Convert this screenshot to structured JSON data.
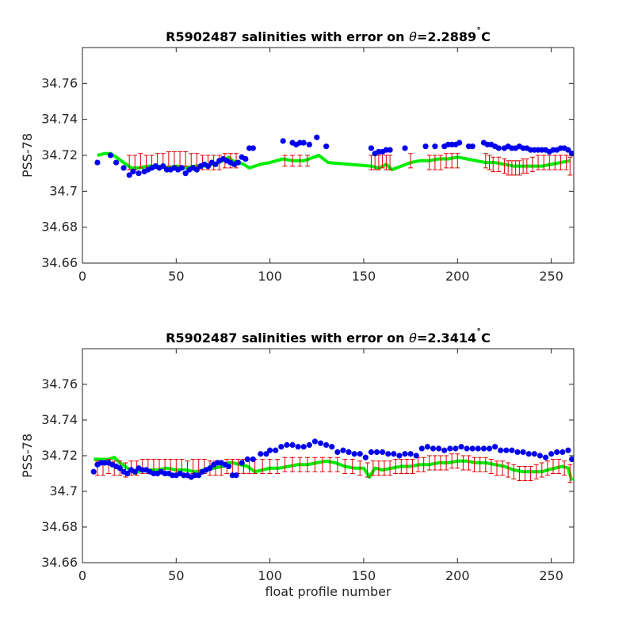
{
  "chart_data": [
    {
      "type": "scatter",
      "title": "R5902487 salinities with error on θ=2.2889˚C",
      "title_parts": {
        "prefix": "R5902487 salinities with error on ",
        "theta": "θ",
        "value": "=2.2889",
        "degree": "˚",
        "unit": "C"
      },
      "xlabel": "",
      "ylabel": "PSS-78",
      "xlim": [
        0,
        262
      ],
      "ylim": [
        34.66,
        34.78
      ],
      "xticks": [
        0,
        50,
        100,
        150,
        200,
        250
      ],
      "xtick_labels": [
        "0",
        "50",
        "100",
        "150",
        "200",
        "250"
      ],
      "yticks": [
        34.66,
        34.68,
        34.7,
        34.72,
        34.74,
        34.76
      ],
      "ytick_labels": [
        "34.66",
        "34.68",
        "34.7",
        "34.72",
        "34.74",
        "34.76"
      ],
      "colors": {
        "float": "#0000ee",
        "mapped": "#00ee00",
        "error": "#dd0000"
      },
      "float_points": {
        "x": [
          8,
          15,
          18,
          22,
          25,
          27,
          30,
          33,
          35,
          37,
          39,
          41,
          43,
          45,
          47,
          49,
          51,
          53,
          55,
          57,
          59,
          61,
          63,
          65,
          67,
          69,
          71,
          73,
          75,
          77,
          79,
          81,
          83,
          85,
          87,
          89,
          91,
          107,
          112,
          114,
          116,
          118,
          121,
          125,
          130,
          154,
          156,
          158,
          160,
          162,
          164,
          172,
          183,
          188,
          193,
          195,
          197,
          199,
          201,
          206,
          208,
          214,
          216,
          218,
          220,
          222,
          225,
          227,
          229,
          231,
          233,
          235,
          237,
          239,
          241,
          243,
          245,
          247,
          249,
          251,
          253,
          255,
          257,
          259,
          261
        ],
        "y": [
          34.716,
          34.72,
          34.716,
          34.713,
          34.709,
          34.711,
          34.71,
          34.711,
          34.712,
          34.713,
          34.714,
          34.713,
          34.714,
          34.712,
          34.712,
          34.713,
          34.712,
          34.713,
          34.71,
          34.712,
          34.713,
          34.712,
          34.714,
          34.715,
          34.714,
          34.716,
          34.715,
          34.717,
          34.718,
          34.717,
          34.716,
          34.715,
          34.716,
          34.719,
          34.718,
          34.724,
          34.724,
          34.728,
          34.727,
          34.726,
          34.727,
          34.727,
          34.726,
          34.73,
          34.725,
          34.724,
          34.721,
          34.722,
          34.722,
          34.723,
          34.723,
          34.724,
          34.725,
          34.725,
          34.725,
          34.726,
          34.726,
          34.726,
          34.727,
          34.725,
          34.725,
          34.727,
          34.726,
          34.726,
          34.725,
          34.724,
          34.724,
          34.725,
          34.724,
          34.724,
          34.725,
          34.724,
          34.724,
          34.723,
          34.723,
          34.723,
          34.723,
          34.723,
          34.722,
          34.723,
          34.723,
          34.724,
          34.724,
          34.723,
          34.721
        ]
      },
      "mapped_line": {
        "x": [
          8,
          12,
          15,
          18,
          22,
          26,
          30,
          35,
          40,
          45,
          50,
          55,
          60,
          65,
          70,
          75,
          78,
          80,
          83,
          86,
          89,
          95,
          100,
          107,
          112,
          118,
          121,
          126,
          131,
          154,
          158,
          162,
          165,
          170,
          175,
          180,
          185,
          190,
          195,
          200,
          205,
          210,
          215,
          220,
          225,
          230,
          235,
          240,
          245,
          250,
          255,
          260
        ],
        "y": [
          34.72,
          34.721,
          34.721,
          34.719,
          34.716,
          34.713,
          34.713,
          34.714,
          34.714,
          34.713,
          34.714,
          34.713,
          34.714,
          34.714,
          34.715,
          34.717,
          34.719,
          34.717,
          34.716,
          34.715,
          34.713,
          34.715,
          34.716,
          34.718,
          34.717,
          34.717,
          34.718,
          34.72,
          34.716,
          34.714,
          34.713,
          34.715,
          34.712,
          34.714,
          34.716,
          34.717,
          34.717,
          34.718,
          34.718,
          34.719,
          34.718,
          34.717,
          34.716,
          34.716,
          34.715,
          34.714,
          34.714,
          34.714,
          34.714,
          34.715,
          34.716,
          34.717
        ]
      },
      "error_bars": {
        "x": [
          25,
          28,
          31,
          34,
          37,
          40,
          43,
          46,
          49,
          52,
          55,
          58,
          61,
          64,
          67,
          70,
          73,
          76,
          79,
          82,
          108,
          112,
          116,
          120,
          154,
          156,
          158,
          160,
          162,
          164,
          175,
          185,
          188,
          191,
          194,
          197,
          200,
          215,
          217,
          219,
          222,
          225,
          227,
          229,
          231,
          233,
          235,
          237,
          240,
          243,
          246,
          249,
          252,
          255,
          258,
          260
        ],
        "y": [
          34.716,
          34.716,
          34.717,
          34.716,
          34.716,
          34.717,
          34.717,
          34.718,
          34.718,
          34.718,
          34.718,
          34.717,
          34.717,
          34.716,
          34.716,
          34.716,
          34.716,
          34.717,
          34.717,
          34.717,
          34.717,
          34.717,
          34.717,
          34.717,
          34.716,
          34.716,
          34.716,
          34.717,
          34.716,
          34.716,
          34.717,
          34.716,
          34.716,
          34.716,
          34.717,
          34.717,
          34.717,
          34.717,
          34.716,
          34.715,
          34.715,
          34.714,
          34.713,
          34.713,
          34.713,
          34.713,
          34.714,
          34.714,
          34.715,
          34.716,
          34.716,
          34.716,
          34.716,
          34.716,
          34.716,
          34.714
        ],
        "err": [
          0.004,
          0.004,
          0.004,
          0.004,
          0.004,
          0.004,
          0.004,
          0.004,
          0.004,
          0.004,
          0.004,
          0.004,
          0.004,
          0.004,
          0.004,
          0.004,
          0.004,
          0.004,
          0.004,
          0.004,
          0.003,
          0.003,
          0.003,
          0.003,
          0.004,
          0.004,
          0.004,
          0.004,
          0.004,
          0.004,
          0.004,
          0.004,
          0.004,
          0.004,
          0.004,
          0.004,
          0.004,
          0.004,
          0.004,
          0.004,
          0.004,
          0.004,
          0.004,
          0.004,
          0.004,
          0.004,
          0.004,
          0.004,
          0.004,
          0.004,
          0.004,
          0.004,
          0.004,
          0.004,
          0.004,
          0.005
        ]
      }
    },
    {
      "type": "scatter",
      "title": "R5902487 salinities with error on θ=2.3414˚C",
      "title_parts": {
        "prefix": "R5902487 salinities with error on ",
        "theta": "θ",
        "value": "=2.3414",
        "degree": "˚",
        "unit": "C"
      },
      "xlabel": "float profile number",
      "ylabel": "PSS-78",
      "xlim": [
        0,
        262
      ],
      "ylim": [
        34.66,
        34.78
      ],
      "xticks": [
        0,
        50,
        100,
        150,
        200,
        250
      ],
      "xtick_labels": [
        "0",
        "50",
        "100",
        "150",
        "200",
        "250"
      ],
      "yticks": [
        34.66,
        34.68,
        34.7,
        34.72,
        34.74,
        34.76
      ],
      "ytick_labels": [
        "34.66",
        "34.68",
        "34.7",
        "34.72",
        "34.74",
        "34.76"
      ],
      "colors": {
        "float": "#0000ee",
        "mapped": "#00ee00",
        "error": "#dd0000"
      },
      "float_points": {
        "x": [
          6,
          8,
          10,
          12,
          14,
          16,
          18,
          20,
          22,
          24,
          26,
          28,
          30,
          32,
          34,
          36,
          38,
          40,
          42,
          44,
          46,
          48,
          50,
          52,
          54,
          56,
          58,
          60,
          62,
          64,
          66,
          68,
          70,
          72,
          74,
          76,
          78,
          80,
          82,
          85,
          88,
          91,
          95,
          98,
          100,
          103,
          106,
          109,
          112,
          115,
          118,
          121,
          124,
          127,
          130,
          133,
          136,
          139,
          142,
          145,
          148,
          151,
          154,
          157,
          160,
          163,
          166,
          169,
          172,
          175,
          178,
          181,
          184,
          187,
          190,
          193,
          196,
          199,
          202,
          205,
          208,
          211,
          214,
          217,
          220,
          223,
          226,
          229,
          232,
          235,
          238,
          241,
          244,
          247,
          250,
          253,
          256,
          259,
          261
        ],
        "y": [
          34.711,
          34.715,
          34.716,
          34.716,
          34.716,
          34.715,
          34.714,
          34.713,
          34.711,
          34.71,
          34.712,
          34.711,
          34.713,
          34.712,
          34.712,
          34.711,
          34.71,
          34.71,
          34.711,
          34.71,
          34.71,
          34.709,
          34.709,
          34.71,
          34.709,
          34.709,
          34.708,
          34.709,
          34.709,
          34.711,
          34.712,
          34.713,
          34.715,
          34.716,
          34.716,
          34.715,
          34.714,
          34.709,
          34.709,
          34.716,
          34.718,
          34.718,
          34.721,
          34.721,
          34.723,
          34.723,
          34.725,
          34.726,
          34.726,
          34.725,
          34.725,
          34.726,
          34.728,
          34.727,
          34.726,
          34.725,
          34.722,
          34.723,
          34.722,
          34.721,
          34.721,
          34.719,
          34.722,
          34.722,
          34.722,
          34.721,
          34.721,
          34.72,
          34.721,
          34.721,
          34.72,
          34.724,
          34.725,
          34.724,
          34.724,
          34.723,
          34.724,
          34.724,
          34.725,
          34.724,
          34.724,
          34.724,
          34.724,
          34.724,
          34.725,
          34.723,
          34.723,
          34.723,
          34.722,
          34.722,
          34.721,
          34.721,
          34.72,
          34.719,
          34.721,
          34.722,
          34.722,
          34.723,
          34.718
        ]
      },
      "mapped_line": {
        "x": [
          6,
          10,
          14,
          17,
          20,
          24,
          28,
          32,
          36,
          40,
          45,
          50,
          55,
          60,
          65,
          70,
          75,
          78,
          80,
          84,
          88,
          92,
          96,
          100,
          105,
          110,
          115,
          120,
          125,
          130,
          135,
          140,
          145,
          150,
          153,
          156,
          160,
          165,
          170,
          175,
          180,
          185,
          190,
          195,
          200,
          205,
          210,
          215,
          220,
          225,
          230,
          235,
          240,
          245,
          248,
          252,
          256,
          259,
          261
        ],
        "y": [
          34.718,
          34.718,
          34.718,
          34.719,
          34.716,
          34.713,
          34.71,
          34.712,
          34.712,
          34.712,
          34.713,
          34.712,
          34.712,
          34.711,
          34.712,
          34.713,
          34.714,
          34.716,
          34.716,
          34.715,
          34.714,
          34.711,
          34.712,
          34.713,
          34.713,
          34.714,
          34.715,
          34.715,
          34.716,
          34.717,
          34.716,
          34.714,
          34.713,
          34.713,
          34.708,
          34.713,
          34.712,
          34.713,
          34.714,
          34.714,
          34.715,
          34.715,
          34.716,
          34.716,
          34.717,
          34.717,
          34.716,
          34.716,
          34.715,
          34.714,
          34.712,
          34.711,
          34.711,
          34.711,
          34.712,
          34.713,
          34.714,
          34.713,
          34.706
        ]
      },
      "error_bars": {
        "x": [
          8,
          11,
          14,
          17,
          20,
          23,
          26,
          29,
          32,
          35,
          38,
          41,
          44,
          47,
          50,
          53,
          56,
          59,
          62,
          65,
          68,
          71,
          74,
          77,
          80,
          83,
          86,
          89,
          92,
          96,
          100,
          104,
          108,
          112,
          116,
          120,
          124,
          128,
          132,
          136,
          140,
          144,
          148,
          152,
          155,
          158,
          161,
          164,
          167,
          170,
          173,
          176,
          179,
          182,
          185,
          188,
          191,
          194,
          197,
          200,
          203,
          206,
          209,
          212,
          215,
          218,
          221,
          224,
          227,
          230,
          233,
          236,
          239,
          242,
          245,
          248,
          251,
          254,
          257,
          260
        ],
        "y": [
          34.713,
          34.713,
          34.714,
          34.713,
          34.713,
          34.712,
          34.713,
          34.713,
          34.714,
          34.714,
          34.714,
          34.714,
          34.714,
          34.714,
          34.714,
          34.714,
          34.713,
          34.714,
          34.714,
          34.714,
          34.713,
          34.713,
          34.713,
          34.714,
          34.714,
          34.714,
          34.714,
          34.714,
          34.714,
          34.714,
          34.714,
          34.714,
          34.715,
          34.715,
          34.715,
          34.715,
          34.715,
          34.715,
          34.715,
          34.715,
          34.714,
          34.714,
          34.713,
          34.712,
          34.713,
          34.713,
          34.713,
          34.713,
          34.714,
          34.714,
          34.714,
          34.714,
          34.715,
          34.715,
          34.716,
          34.716,
          34.716,
          34.716,
          34.717,
          34.717,
          34.716,
          34.716,
          34.715,
          34.715,
          34.715,
          34.714,
          34.713,
          34.713,
          34.712,
          34.711,
          34.71,
          34.71,
          34.71,
          34.711,
          34.712,
          34.713,
          34.714,
          34.714,
          34.713,
          34.71
        ],
        "err": [
          0.004,
          0.004,
          0.004,
          0.004,
          0.004,
          0.004,
          0.004,
          0.004,
          0.004,
          0.004,
          0.004,
          0.004,
          0.004,
          0.004,
          0.004,
          0.004,
          0.004,
          0.004,
          0.004,
          0.004,
          0.004,
          0.004,
          0.004,
          0.004,
          0.004,
          0.004,
          0.004,
          0.004,
          0.004,
          0.004,
          0.004,
          0.004,
          0.004,
          0.004,
          0.004,
          0.004,
          0.004,
          0.004,
          0.004,
          0.004,
          0.004,
          0.004,
          0.004,
          0.004,
          0.004,
          0.004,
          0.004,
          0.004,
          0.004,
          0.004,
          0.004,
          0.004,
          0.004,
          0.004,
          0.004,
          0.004,
          0.004,
          0.004,
          0.004,
          0.004,
          0.004,
          0.004,
          0.004,
          0.004,
          0.004,
          0.004,
          0.004,
          0.004,
          0.004,
          0.004,
          0.004,
          0.004,
          0.004,
          0.004,
          0.004,
          0.004,
          0.004,
          0.004,
          0.004,
          0.005
        ]
      }
    }
  ]
}
